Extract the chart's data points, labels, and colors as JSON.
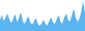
{
  "values": [
    4200,
    6500,
    3800,
    5500,
    7000,
    4500,
    3200,
    5000,
    6800,
    3500,
    5200,
    7500,
    4000,
    2800,
    4500,
    6000,
    3500,
    2500,
    3800,
    5200,
    2800,
    2000,
    3000,
    4500,
    2800,
    2200,
    3800,
    5500,
    3500,
    2800,
    4500,
    6500,
    3800,
    2800,
    5500,
    7000,
    4500,
    3800,
    6000,
    9000,
    5500,
    3800,
    4800,
    7500,
    12000,
    6500
  ],
  "line_color": "#5ab4f0",
  "fill_color": "#5ab4f0",
  "background_color": "#ffffff",
  "ylim_min": 0,
  "ylim_max": 13000
}
